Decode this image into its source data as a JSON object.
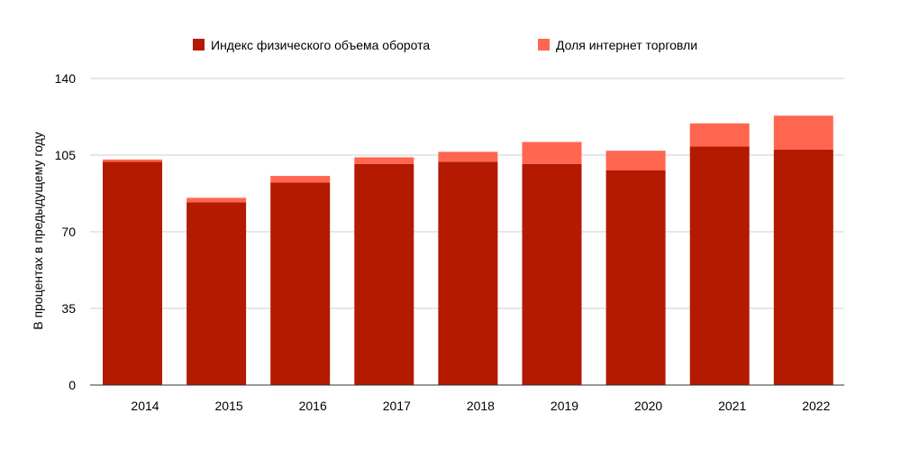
{
  "chart_data": {
    "type": "bar",
    "stacked": true,
    "title": "",
    "xlabel": "",
    "ylabel": "В процентах в предыдущему году",
    "categories": [
      "2014",
      "2015",
      "2016",
      "2017",
      "2018",
      "2019",
      "2020",
      "2021",
      "2022"
    ],
    "series": [
      {
        "name": "Индекс физического объема оборота",
        "color": "#b31a00",
        "values": [
          102,
          83.5,
          92.5,
          101,
          102,
          101,
          98,
          109,
          107.5
        ]
      },
      {
        "name": "Доля интернет торговли",
        "color": "#ff6650",
        "values": [
          1,
          2,
          3,
          3,
          4.5,
          10,
          9,
          10.5,
          15.5
        ]
      }
    ],
    "ylim": [
      0,
      140
    ],
    "yticks": [
      0,
      35,
      70,
      105,
      140
    ],
    "grid": true,
    "legend_position": "top"
  }
}
